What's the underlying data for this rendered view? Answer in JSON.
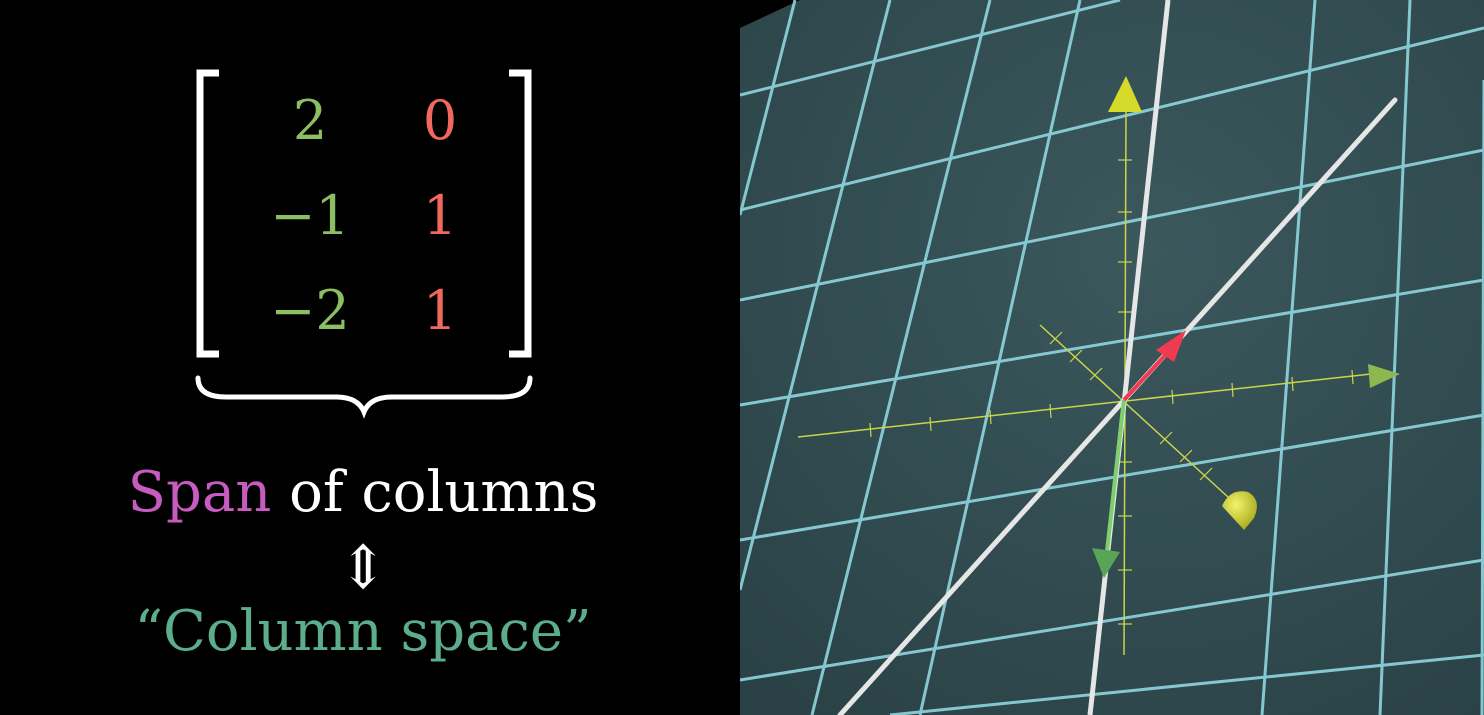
{
  "matrix": {
    "rows": [
      [
        "2",
        "0"
      ],
      [
        "−1",
        "1"
      ],
      [
        "−2",
        "1"
      ]
    ],
    "column_colors": [
      "#8cbf63",
      "#f0685e"
    ]
  },
  "captions": {
    "span_word": "Span",
    "span_rest": " of columns",
    "equivalence_symbol": "⇕",
    "column_space": "“Column space”"
  },
  "colors": {
    "span_word": "#c75bc0",
    "caption_text": "#ffffff",
    "column_space": "#5cad8c",
    "bracket": "#ffffff",
    "plane": "#2f4a4f",
    "grid_line": "#8fd6e0",
    "axis": "#c9d64a",
    "span_line": "#e6e6e6",
    "red_vector": "#f03a4f",
    "green_vector": "#7ecf6e"
  },
  "icons": {
    "y_axis_head": "cone-arrow-up-icon",
    "x_axis_head": "cone-arrow-right-icon",
    "z_axis_head": "cone-arrow-front-icon",
    "red_vector_head": "arrow-head-icon",
    "green_vector_head": "arrow-head-icon"
  }
}
